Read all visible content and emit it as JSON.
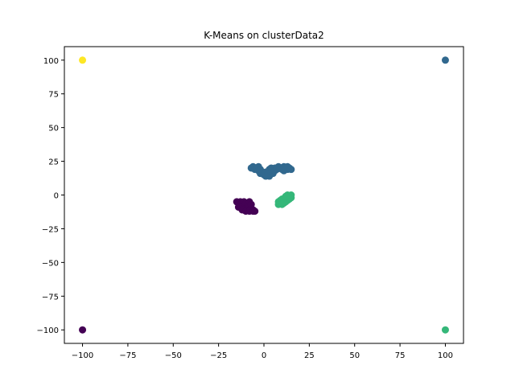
{
  "chart_data": {
    "type": "scatter",
    "title": "K-Means on clusterData2",
    "xlabel": "",
    "ylabel": "",
    "xlim": [
      -110,
      110
    ],
    "ylim": [
      -110,
      110
    ],
    "xticks": [
      -100,
      -75,
      -50,
      -25,
      0,
      25,
      50,
      75,
      100
    ],
    "yticks": [
      -100,
      -75,
      -50,
      -25,
      0,
      25,
      50,
      75,
      100
    ],
    "grid": false,
    "colors": [
      "#440154",
      "#31688e",
      "#35b779",
      "#fde725"
    ],
    "series": [
      {
        "cluster": 0,
        "color": "#440154",
        "points": [
          [
            -15,
            -5
          ],
          [
            -14,
            -6
          ],
          [
            -13,
            -5
          ],
          [
            -13,
            -7
          ],
          [
            -12,
            -9
          ],
          [
            -12,
            -6
          ],
          [
            -11,
            -5
          ],
          [
            -11,
            -8
          ],
          [
            -10,
            -6
          ],
          [
            -10,
            -10
          ],
          [
            -9,
            -7
          ],
          [
            -9,
            -11
          ],
          [
            -8,
            -8
          ],
          [
            -8,
            -5
          ],
          [
            -7,
            -10
          ],
          [
            -6,
            -11
          ],
          [
            -14,
            -9
          ],
          [
            -12,
            -11
          ],
          [
            -10,
            -12
          ],
          [
            -8,
            -12
          ],
          [
            -6,
            -12
          ],
          [
            -7,
            -7
          ],
          [
            -5,
            -12
          ],
          [
            -100,
            -100
          ]
        ]
      },
      {
        "cluster": 1,
        "color": "#31688e",
        "points": [
          [
            -7,
            20
          ],
          [
            -6,
            21
          ],
          [
            -5,
            19
          ],
          [
            -4,
            20
          ],
          [
            -3,
            18
          ],
          [
            -3,
            21
          ],
          [
            -2,
            16
          ],
          [
            -2,
            19
          ],
          [
            -1,
            17
          ],
          [
            0,
            15
          ],
          [
            1,
            14
          ],
          [
            1,
            17
          ],
          [
            2,
            15
          ],
          [
            3,
            14
          ],
          [
            3,
            19
          ],
          [
            4,
            20
          ],
          [
            4,
            17
          ],
          [
            5,
            16
          ],
          [
            6,
            20
          ],
          [
            6,
            18
          ],
          [
            7,
            19
          ],
          [
            8,
            21
          ],
          [
            9,
            20
          ],
          [
            10,
            19
          ],
          [
            11,
            21
          ],
          [
            12,
            20
          ],
          [
            13,
            19
          ],
          [
            14,
            20
          ],
          [
            15,
            19
          ],
          [
            11,
            18
          ],
          [
            13,
            21
          ],
          [
            100,
            100
          ]
        ]
      },
      {
        "cluster": 2,
        "color": "#35b779",
        "points": [
          [
            8,
            -7
          ],
          [
            8,
            -5
          ],
          [
            9,
            -6
          ],
          [
            9,
            -4
          ],
          [
            10,
            -5
          ],
          [
            10,
            -3
          ],
          [
            11,
            -6
          ],
          [
            11,
            -4
          ],
          [
            12,
            -3
          ],
          [
            12,
            -5
          ],
          [
            13,
            -2
          ],
          [
            13,
            -4
          ],
          [
            13,
            0
          ],
          [
            14,
            -3
          ],
          [
            14,
            -1
          ],
          [
            15,
            -2
          ],
          [
            15,
            0
          ],
          [
            12,
            -1
          ],
          [
            10,
            -7
          ],
          [
            100,
            -100
          ]
        ]
      },
      {
        "cluster": 3,
        "color": "#fde725",
        "points": [
          [
            -100,
            100
          ]
        ]
      }
    ]
  }
}
